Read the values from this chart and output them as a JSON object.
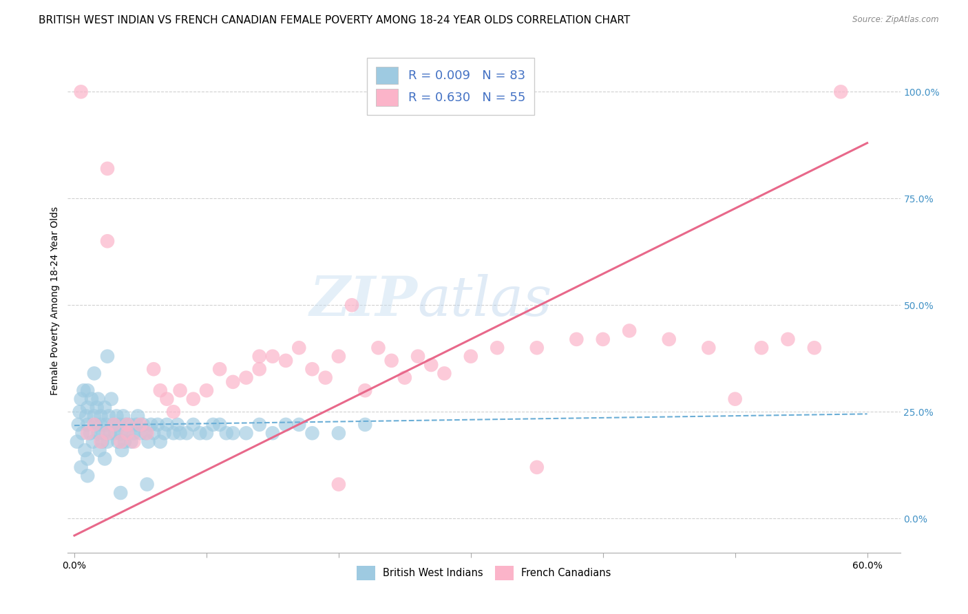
{
  "title": "BRITISH WEST INDIAN VS FRENCH CANADIAN FEMALE POVERTY AMONG 18-24 YEAR OLDS CORRELATION CHART",
  "source": "Source: ZipAtlas.com",
  "ylabel": "Female Poverty Among 18-24 Year Olds",
  "xlim": [
    -0.005,
    0.625
  ],
  "ylim": [
    -0.08,
    1.1
  ],
  "xticks": [
    0.0,
    0.1,
    0.2,
    0.3,
    0.4,
    0.5,
    0.6
  ],
  "xticklabels_show": [
    "0.0%",
    "",
    "",
    "",
    "",
    "",
    "60.0%"
  ],
  "yticks_right": [
    0.0,
    0.25,
    0.5,
    0.75,
    1.0
  ],
  "yticklabels_right": [
    "0.0%",
    "25.0%",
    "50.0%",
    "75.0%",
    "100.0%"
  ],
  "blue_R": 0.009,
  "blue_N": 83,
  "pink_R": 0.63,
  "pink_N": 55,
  "blue_color": "#9ecae1",
  "pink_color": "#fbb4c9",
  "blue_line_color": "#6baed6",
  "pink_line_color": "#e8688a",
  "watermark_zip": "ZIP",
  "watermark_atlas": "atlas",
  "legend_label_blue": "British West Indians",
  "legend_label_pink": "French Canadians",
  "blue_scatter_x": [
    0.002,
    0.003,
    0.004,
    0.005,
    0.005,
    0.006,
    0.007,
    0.008,
    0.009,
    0.01,
    0.01,
    0.01,
    0.01,
    0.01,
    0.012,
    0.013,
    0.014,
    0.015,
    0.015,
    0.016,
    0.017,
    0.018,
    0.018,
    0.019,
    0.02,
    0.02,
    0.021,
    0.022,
    0.023,
    0.023,
    0.024,
    0.025,
    0.026,
    0.027,
    0.028,
    0.03,
    0.031,
    0.032,
    0.033,
    0.034,
    0.035,
    0.036,
    0.037,
    0.038,
    0.039,
    0.04,
    0.042,
    0.043,
    0.045,
    0.047,
    0.048,
    0.05,
    0.052,
    0.054,
    0.056,
    0.058,
    0.06,
    0.063,
    0.065,
    0.068,
    0.07,
    0.075,
    0.078,
    0.08,
    0.085,
    0.09,
    0.095,
    0.1,
    0.105,
    0.11,
    0.115,
    0.12,
    0.13,
    0.14,
    0.15,
    0.16,
    0.17,
    0.18,
    0.2,
    0.22,
    0.025,
    0.035,
    0.055
  ],
  "blue_scatter_y": [
    0.18,
    0.22,
    0.25,
    0.12,
    0.28,
    0.2,
    0.3,
    0.16,
    0.24,
    0.22,
    0.26,
    0.1,
    0.3,
    0.14,
    0.2,
    0.28,
    0.18,
    0.24,
    0.34,
    0.22,
    0.26,
    0.2,
    0.28,
    0.16,
    0.22,
    0.24,
    0.18,
    0.2,
    0.26,
    0.14,
    0.22,
    0.18,
    0.24,
    0.2,
    0.28,
    0.22,
    0.2,
    0.24,
    0.18,
    0.22,
    0.2,
    0.16,
    0.24,
    0.18,
    0.22,
    0.2,
    0.22,
    0.18,
    0.2,
    0.22,
    0.24,
    0.2,
    0.22,
    0.2,
    0.18,
    0.22,
    0.2,
    0.22,
    0.18,
    0.2,
    0.22,
    0.2,
    0.22,
    0.2,
    0.2,
    0.22,
    0.2,
    0.2,
    0.22,
    0.22,
    0.2,
    0.2,
    0.2,
    0.22,
    0.2,
    0.22,
    0.22,
    0.2,
    0.2,
    0.22,
    0.38,
    0.06,
    0.08
  ],
  "pink_scatter_x": [
    0.005,
    0.01,
    0.015,
    0.02,
    0.025,
    0.025,
    0.03,
    0.035,
    0.04,
    0.04,
    0.045,
    0.05,
    0.055,
    0.06,
    0.065,
    0.07,
    0.075,
    0.08,
    0.09,
    0.1,
    0.11,
    0.12,
    0.13,
    0.14,
    0.14,
    0.15,
    0.16,
    0.17,
    0.18,
    0.19,
    0.2,
    0.21,
    0.22,
    0.23,
    0.24,
    0.25,
    0.26,
    0.27,
    0.28,
    0.3,
    0.32,
    0.35,
    0.38,
    0.4,
    0.42,
    0.45,
    0.48,
    0.5,
    0.52,
    0.54,
    0.56,
    0.58,
    0.025,
    0.2,
    0.35
  ],
  "pink_scatter_y": [
    1.0,
    0.2,
    0.22,
    0.18,
    0.2,
    0.65,
    0.22,
    0.18,
    0.2,
    0.22,
    0.18,
    0.22,
    0.2,
    0.35,
    0.3,
    0.28,
    0.25,
    0.3,
    0.28,
    0.3,
    0.35,
    0.32,
    0.33,
    0.35,
    0.38,
    0.38,
    0.37,
    0.4,
    0.35,
    0.33,
    0.38,
    0.5,
    0.3,
    0.4,
    0.37,
    0.33,
    0.38,
    0.36,
    0.34,
    0.38,
    0.4,
    0.4,
    0.42,
    0.42,
    0.44,
    0.42,
    0.4,
    0.28,
    0.4,
    0.42,
    0.4,
    1.0,
    0.82,
    0.08,
    0.12
  ],
  "blue_line_x": [
    0.0,
    0.6
  ],
  "blue_line_y": [
    0.218,
    0.245
  ],
  "pink_line_x": [
    0.0,
    0.6
  ],
  "pink_line_y": [
    -0.04,
    0.88
  ],
  "grid_color": "#d0d0d0",
  "bg_color": "#ffffff",
  "title_fontsize": 11,
  "axis_label_fontsize": 10,
  "tick_fontsize": 10,
  "legend_fontsize": 13
}
